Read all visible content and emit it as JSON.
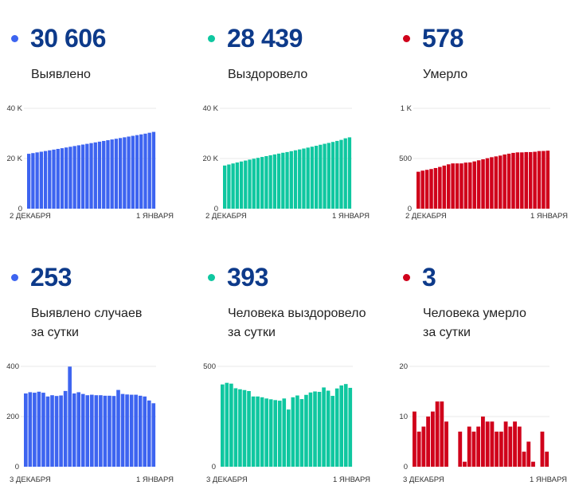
{
  "colors": {
    "cases": "#3d64f0",
    "recovered": "#0fc7a0",
    "deaths": "#d0021b",
    "number": "#0d3a8a"
  },
  "panels": [
    {
      "id": "cases-total",
      "value": "30 606",
      "label_lines": [
        "Выявлено"
      ],
      "color_key": "cases"
    },
    {
      "id": "recovered-total",
      "value": "28 439",
      "label_lines": [
        "Выздоровело"
      ],
      "color_key": "recovered"
    },
    {
      "id": "deaths-total",
      "value": "578",
      "label_lines": [
        "Умерло"
      ],
      "color_key": "deaths"
    },
    {
      "id": "cases-daily",
      "value": "253",
      "label_lines": [
        "Выявлено случаев",
        "за сутки"
      ],
      "color_key": "cases"
    },
    {
      "id": "recovered-daily",
      "value": "393",
      "label_lines": [
        "Человека выздоровело",
        "за сутки"
      ],
      "color_key": "recovered"
    },
    {
      "id": "deaths-daily",
      "value": "3",
      "label_lines": [
        "Человека умерло",
        "за сутки"
      ],
      "color_key": "deaths"
    }
  ],
  "chart_data": [
    {
      "type": "bar",
      "title": "Выявлено",
      "x_start": "2 ДЕКАБРЯ",
      "x_end": "1 ЯНВАРЯ",
      "ylim": [
        0,
        40000
      ],
      "yticks": [
        {
          "v": 0,
          "label": "0"
        },
        {
          "v": 20000,
          "label": "20 K"
        },
        {
          "v": 40000,
          "label": "40 K"
        }
      ],
      "grid": true,
      "values": [
        21880,
        22150,
        22430,
        22700,
        22980,
        23260,
        23540,
        23820,
        24100,
        24390,
        24680,
        24970,
        25260,
        25550,
        25840,
        26130,
        26420,
        26710,
        27000,
        27290,
        27580,
        27870,
        28160,
        28450,
        28740,
        29030,
        29320,
        29610,
        29900,
        30260,
        30606
      ]
    },
    {
      "type": "bar",
      "title": "Выздоровело",
      "x_start": "2 ДЕКАБРЯ",
      "x_end": "1 ЯНВАРЯ",
      "ylim": [
        0,
        40000
      ],
      "yticks": [
        {
          "v": 0,
          "label": "0"
        },
        {
          "v": 20000,
          "label": "20 K"
        },
        {
          "v": 40000,
          "label": "40 K"
        }
      ],
      "grid": true,
      "values": [
        17200,
        17610,
        18020,
        18410,
        18800,
        19180,
        19560,
        19910,
        20260,
        20610,
        20950,
        21290,
        21620,
        21950,
        22290,
        22570,
        22920,
        23270,
        23610,
        23970,
        24340,
        24710,
        25080,
        25480,
        25860,
        26210,
        26600,
        27010,
        27420,
        28050,
        28439
      ]
    },
    {
      "type": "bar",
      "title": "Умерло",
      "x_start": "2 ДЕКАБРЯ",
      "x_end": "1 ЯНВАРЯ",
      "ylim": [
        0,
        1000
      ],
      "yticks": [
        {
          "v": 0,
          "label": "0"
        },
        {
          "v": 500,
          "label": "500"
        },
        {
          "v": 1000,
          "label": "1 K"
        }
      ],
      "grid": true,
      "values": [
        368,
        379,
        387,
        395,
        405,
        416,
        429,
        442,
        451,
        451,
        451,
        459,
        461,
        471,
        482,
        492,
        503,
        513,
        521,
        529,
        540,
        548,
        556,
        561,
        561,
        564,
        564,
        567,
        574,
        575,
        578
      ]
    },
    {
      "type": "bar",
      "title": "Выявлено случаев за сутки",
      "x_start": "3 ДЕКАБРЯ",
      "x_end": "1 ЯНВАРЯ",
      "ylim": [
        0,
        400
      ],
      "yticks": [
        {
          "v": 0,
          "label": "0"
        },
        {
          "v": 200,
          "label": "200"
        },
        {
          "v": 400,
          "label": "400"
        }
      ],
      "grid": true,
      "values": [
        292,
        297,
        295,
        299,
        295,
        280,
        285,
        282,
        284,
        302,
        399,
        292,
        297,
        290,
        285,
        287,
        285,
        285,
        283,
        283,
        282,
        306,
        290,
        288,
        287,
        287,
        283,
        280,
        264,
        253
      ]
    },
    {
      "type": "bar",
      "title": "Человека выздоровело за сутки",
      "x_start": "3 ДЕКАБРЯ",
      "x_end": "1 ЯНВАРЯ",
      "ylim": [
        0,
        500
      ],
      "yticks": [
        {
          "v": 0,
          "label": "0"
        },
        {
          "v": 500,
          "label": "500"
        }
      ],
      "grid": true,
      "values": [
        410,
        418,
        414,
        391,
        386,
        382,
        377,
        350,
        350,
        346,
        340,
        336,
        332,
        329,
        340,
        285,
        346,
        355,
        337,
        358,
        370,
        375,
        373,
        395,
        379,
        353,
        390,
        405,
        412,
        393
      ]
    },
    {
      "type": "bar",
      "title": "Человека умерло за сутки",
      "x_start": "3 ДЕКАБРЯ",
      "x_end": "1 ЯНВАРЯ",
      "ylim": [
        0,
        20
      ],
      "yticks": [
        {
          "v": 0,
          "label": "0"
        },
        {
          "v": 10,
          "label": "10"
        },
        {
          "v": 20,
          "label": "20"
        }
      ],
      "grid": true,
      "values": [
        11,
        7,
        8,
        10,
        11,
        13,
        13,
        9,
        0,
        0,
        7,
        1,
        8,
        7,
        8,
        10,
        9,
        9,
        7,
        7,
        9,
        8,
        9,
        8,
        3,
        5,
        1,
        0,
        7,
        3
      ]
    }
  ]
}
